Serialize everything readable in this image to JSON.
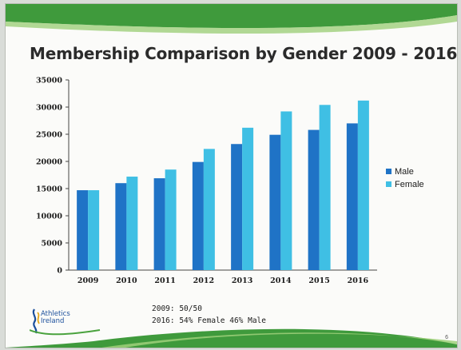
{
  "slide": {
    "title": "Membership Comparison by Gender 2009 - 2016",
    "notes": [
      "2009: 50/50",
      "2016: 54% Female 46% Male"
    ],
    "logo_line1": "Athletics",
    "logo_line2": "Ireland",
    "slide_number": "6"
  },
  "colors": {
    "male": "#1f73c6",
    "female": "#3fbfe4",
    "band_green": "#3f9a3c",
    "band_light_green": "#9fd07a"
  },
  "chart_data": {
    "type": "bar",
    "title": "Membership Comparison by Gender 2009 - 2016",
    "categories": [
      "2009",
      "2010",
      "2011",
      "2012",
      "2013",
      "2014",
      "2015",
      "2016"
    ],
    "series": [
      {
        "name": "Male",
        "values": [
          14700,
          16000,
          16900,
          19900,
          23200,
          24900,
          25800,
          27000
        ]
      },
      {
        "name": "Female",
        "values": [
          14700,
          17200,
          18500,
          22300,
          26200,
          29200,
          30400,
          31200
        ]
      }
    ],
    "ylim": [
      0,
      35000
    ],
    "yticks": [
      0,
      5000,
      10000,
      15000,
      20000,
      25000,
      30000,
      35000
    ],
    "legend_position": "right",
    "grid": false
  }
}
